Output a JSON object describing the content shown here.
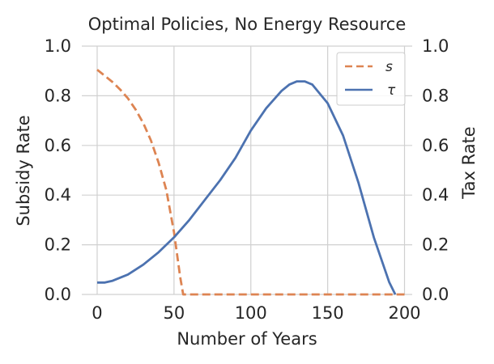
{
  "chart_data": {
    "type": "line",
    "title": "Optimal Policies, No Energy Resource",
    "xlabel": "Number of Years",
    "ylabel_left": "Subsidy Rate",
    "ylabel_right": "Tax Rate",
    "xlim": [
      -10,
      205
    ],
    "ylim": [
      0,
      1
    ],
    "x_ticks": [
      "0",
      "50",
      "100",
      "150",
      "200"
    ],
    "y_ticks": [
      "0.0",
      "0.2",
      "0.4",
      "0.6",
      "0.8",
      "1.0"
    ],
    "grid": true,
    "legend_position": "top-right",
    "series": [
      {
        "name": "s",
        "axis": "left",
        "color": "#dd8452",
        "dash": "dashed",
        "x": [
          0,
          5,
          10,
          15,
          20,
          25,
          30,
          35,
          40,
          45,
          50,
          52,
          54,
          56,
          60,
          80,
          100,
          120,
          140,
          160,
          180,
          200
        ],
        "y": [
          0.905,
          0.88,
          0.855,
          0.825,
          0.79,
          0.745,
          0.69,
          0.62,
          0.53,
          0.42,
          0.25,
          0.16,
          0.07,
          0.0,
          0.0,
          0.0,
          0.0,
          0.0,
          0.0,
          0.0,
          0.0,
          0.0
        ]
      },
      {
        "name": "τ",
        "axis": "right",
        "color": "#4c72b0",
        "dash": "solid",
        "x": [
          0,
          5,
          10,
          20,
          30,
          40,
          50,
          60,
          70,
          80,
          90,
          100,
          110,
          120,
          125,
          130,
          135,
          140,
          150,
          160,
          170,
          180,
          190,
          194
        ],
        "y": [
          0.048,
          0.048,
          0.055,
          0.08,
          0.12,
          0.17,
          0.23,
          0.3,
          0.38,
          0.46,
          0.55,
          0.66,
          0.75,
          0.82,
          0.845,
          0.858,
          0.858,
          0.845,
          0.77,
          0.64,
          0.45,
          0.23,
          0.05,
          0.0
        ]
      }
    ]
  }
}
